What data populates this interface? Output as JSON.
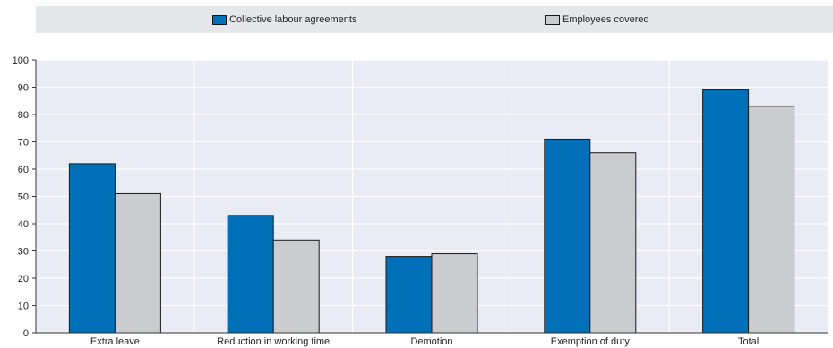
{
  "chart_data": {
    "type": "bar",
    "categories": [
      "Extra leave",
      "Reduction in working time",
      "Demotion",
      "Exemption of duty",
      "Total"
    ],
    "series": [
      {
        "name": "Collective labour agreements",
        "values": [
          62,
          43,
          28,
          71,
          89
        ],
        "color": "#0070b8"
      },
      {
        "name": "Employees covered",
        "values": [
          51,
          34,
          29,
          66,
          83
        ],
        "color": "#cbcccf"
      }
    ],
    "ylim": [
      0,
      100
    ],
    "yticks": [
      0,
      10,
      20,
      30,
      40,
      50,
      60,
      70,
      80,
      90,
      100
    ],
    "grid": true,
    "legend_position": "top",
    "title": "",
    "xlabel": "",
    "ylabel": ""
  },
  "colors": {
    "plot_background": "#eaecf5",
    "gridline": "#ffffff",
    "legend_background": "#e6e7ea"
  }
}
